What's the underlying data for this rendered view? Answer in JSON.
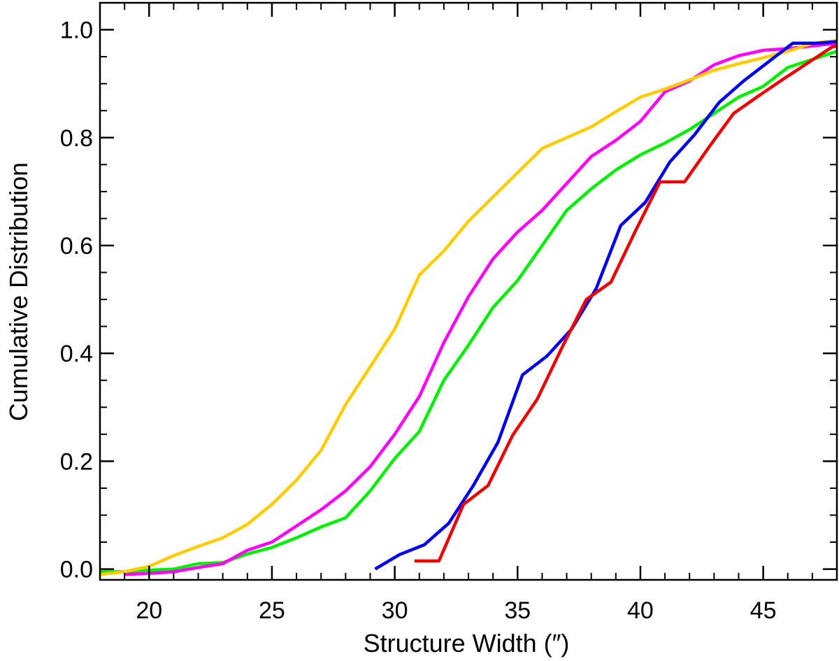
{
  "chart_data": {
    "type": "line",
    "title": "",
    "xlabel": "Structure Width (″)",
    "ylabel": "Cumulative Distribution",
    "xlim": [
      18,
      48
    ],
    "ylim": [
      -0.02,
      1.05
    ],
    "xticks": [
      20,
      25,
      30,
      35,
      40,
      45
    ],
    "xtick_labels": [
      "20",
      "25",
      "30",
      "35",
      "40",
      "45"
    ],
    "yticks": [
      0.0,
      0.2,
      0.4,
      0.6,
      0.8,
      1.0
    ],
    "ytick_labels": [
      "0.0",
      "0.2",
      "0.4",
      "0.6",
      "0.8",
      "1.0"
    ],
    "grid": false,
    "series": [
      {
        "name": "green",
        "color": "#00ee00",
        "x": [
          18.0,
          19.0,
          20.0,
          21.0,
          22.0,
          23.0,
          24.0,
          25.0,
          26.0,
          27.0,
          28.0,
          29.0,
          30.0,
          31.0,
          32.0,
          33.0,
          34.0,
          35.0,
          36.0,
          37.0,
          38.0,
          39.0,
          40.0,
          41.0,
          42.0,
          43.0,
          44.0,
          45.0,
          46.0,
          47.0,
          48.0
        ],
        "values": [
          -0.005,
          -0.005,
          -0.002,
          0.0,
          0.01,
          0.012,
          0.028,
          0.04,
          0.058,
          0.078,
          0.095,
          0.145,
          0.205,
          0.255,
          0.35,
          0.415,
          0.485,
          0.535,
          0.6,
          0.665,
          0.705,
          0.74,
          0.768,
          0.79,
          0.815,
          0.845,
          0.875,
          0.895,
          0.93,
          0.945,
          0.96
        ]
      },
      {
        "name": "magenta",
        "color": "#ff00ff",
        "x": [
          19.0,
          20.0,
          21.0,
          22.0,
          23.0,
          24.0,
          25.0,
          26.0,
          27.0,
          28.0,
          29.0,
          30.0,
          31.0,
          32.0,
          33.0,
          34.0,
          35.0,
          36.0,
          37.0,
          38.0,
          39.0,
          40.0,
          41.0,
          42.0,
          43.0,
          44.0,
          45.0,
          46.0,
          47.0,
          48.0
        ],
        "values": [
          -0.01,
          -0.008,
          -0.005,
          0.003,
          0.01,
          0.035,
          0.05,
          0.08,
          0.11,
          0.145,
          0.19,
          0.25,
          0.32,
          0.42,
          0.505,
          0.575,
          0.625,
          0.665,
          0.715,
          0.765,
          0.795,
          0.83,
          0.885,
          0.905,
          0.935,
          0.952,
          0.962,
          0.965,
          0.97,
          0.975
        ]
      },
      {
        "name": "yellow",
        "color": "#ffcc00",
        "x": [
          18.0,
          19.0,
          20.0,
          21.0,
          22.0,
          23.0,
          24.0,
          25.0,
          26.0,
          27.0,
          28.0,
          29.0,
          30.0,
          31.0,
          32.0,
          33.0,
          34.0,
          35.0,
          36.0,
          37.0,
          38.0,
          39.0,
          40.0,
          41.0,
          42.0,
          43.0,
          44.0,
          45.0,
          46.0,
          47.0,
          48.0
        ],
        "values": [
          -0.01,
          -0.005,
          0.005,
          0.025,
          0.042,
          0.058,
          0.083,
          0.12,
          0.165,
          0.22,
          0.305,
          0.375,
          0.445,
          0.545,
          0.59,
          0.645,
          0.69,
          0.735,
          0.78,
          0.8,
          0.82,
          0.848,
          0.875,
          0.89,
          0.907,
          0.925,
          0.937,
          0.948,
          0.96,
          0.975,
          0.98
        ]
      },
      {
        "name": "blue",
        "color": "#0000ee",
        "x": [
          29.2,
          30.2,
          31.2,
          32.2,
          33.2,
          34.2,
          35.2,
          36.2,
          37.2,
          38.2,
          39.2,
          40.2,
          41.2,
          42.2,
          43.2,
          44.2,
          45.2,
          46.2,
          47.2,
          48.0
        ],
        "values": [
          0.0,
          0.027,
          0.045,
          0.085,
          0.155,
          0.235,
          0.36,
          0.395,
          0.445,
          0.52,
          0.637,
          0.68,
          0.755,
          0.805,
          0.865,
          0.905,
          0.94,
          0.975,
          0.975,
          0.978
        ]
      },
      {
        "name": "red",
        "color": "#ee0000",
        "x": [
          30.8,
          31.8,
          32.8,
          33.8,
          34.8,
          35.8,
          36.8,
          37.8,
          38.8,
          39.8,
          40.8,
          41.8,
          42.8,
          43.8,
          44.8,
          45.8,
          46.8,
          47.8,
          48.0
        ],
        "values": [
          0.015,
          0.015,
          0.12,
          0.155,
          0.248,
          0.315,
          0.41,
          0.5,
          0.532,
          0.627,
          0.718,
          0.718,
          0.783,
          0.845,
          0.877,
          0.908,
          0.938,
          0.968,
          0.97
        ]
      }
    ]
  }
}
